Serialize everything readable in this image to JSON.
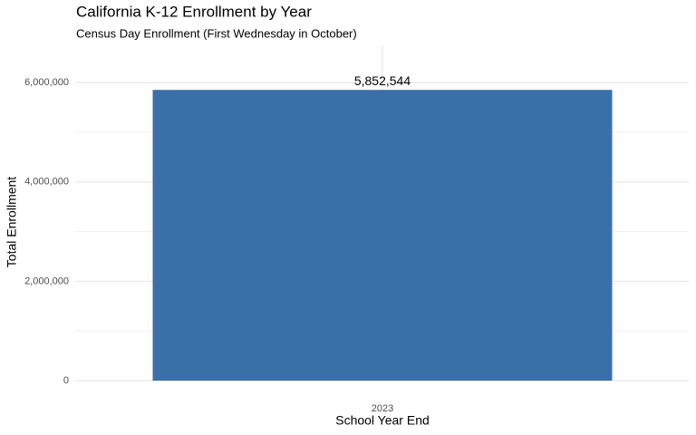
{
  "chart_data": {
    "type": "bar",
    "title": "California K-12 Enrollment by Year",
    "subtitle": "Census Day Enrollment (First Wednesday in October)",
    "x_label": "School Year End",
    "y_label": "Total Enrollment",
    "categories": [
      "2023"
    ],
    "values": [
      5852544
    ],
    "value_labels": [
      "5,852,544"
    ],
    "color": "#3b6fa7",
    "ylim": [
      0,
      6750000
    ],
    "yticks": [
      0,
      {
        "value": 2000000,
        "label": "2,000,000"
      },
      {
        "value": 4000000,
        "label": "4,000,000"
      },
      {
        "value": 6000000,
        "label": "6,000,000"
      }
    ],
    "minor_yticks": [
      1000000,
      3000000,
      5000000
    ],
    "grid": true
  }
}
